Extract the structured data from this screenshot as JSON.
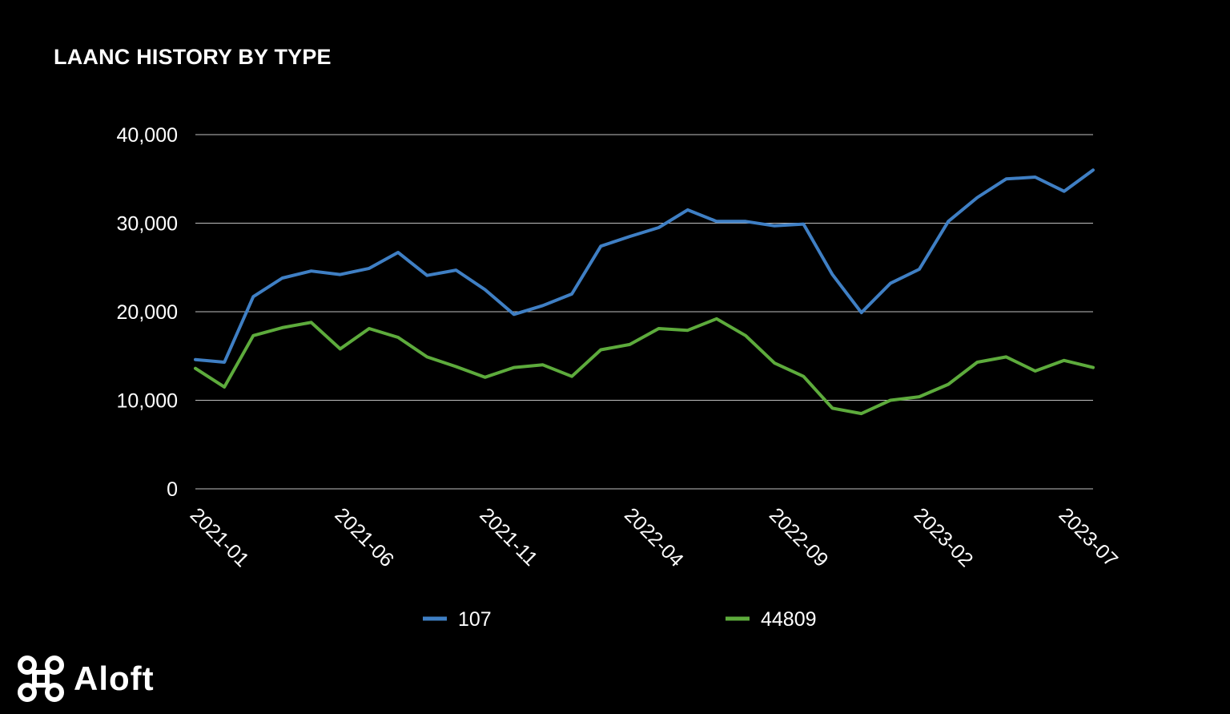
{
  "chart_data": {
    "type": "line",
    "title": "LAANC HISTORY BY TYPE",
    "ylim": [
      0,
      40000
    ],
    "yticks": [
      0,
      10000,
      20000,
      30000,
      40000
    ],
    "ytick_labels": [
      "0",
      "10,000",
      "20,000",
      "30,000",
      "40,000"
    ],
    "x": [
      "2021-01",
      "2021-02",
      "2021-03",
      "2021-04",
      "2021-05",
      "2021-06",
      "2021-07",
      "2021-08",
      "2021-09",
      "2021-10",
      "2021-11",
      "2021-12",
      "2022-01",
      "2022-02",
      "2022-03",
      "2022-04",
      "2022-05",
      "2022-06",
      "2022-07",
      "2022-08",
      "2022-09",
      "2022-10",
      "2022-11",
      "2022-12",
      "2023-01",
      "2023-02",
      "2023-03",
      "2023-04",
      "2023-05",
      "2023-06",
      "2023-07",
      "2023-08"
    ],
    "xtick_labels": [
      "2021-01",
      "2021-06",
      "2021-11",
      "2022-04",
      "2022-09",
      "2023-02",
      "2023-07"
    ],
    "grid": true,
    "legend_position": "bottom",
    "series": [
      {
        "name": "107",
        "color": "#3f7fc4",
        "values": [
          14600,
          14300,
          21700,
          23800,
          24600,
          24200,
          24900,
          26700,
          24100,
          24700,
          22500,
          19700,
          20700,
          22000,
          27400,
          28500,
          29500,
          31500,
          30200,
          30200,
          29700,
          29900,
          24200,
          19900,
          23200,
          24800,
          30200,
          32900,
          35000,
          35200,
          33600,
          36000
        ]
      },
      {
        "name": "44809",
        "color": "#5dab3c",
        "values": [
          13600,
          11500,
          17300,
          18200,
          18800,
          15800,
          18100,
          17100,
          14900,
          13800,
          12600,
          13700,
          14000,
          12700,
          15700,
          16300,
          18100,
          17900,
          19200,
          17300,
          14200,
          12700,
          9100,
          8500,
          10000,
          10400,
          11800,
          14300,
          14900,
          13300,
          14500,
          13700
        ]
      }
    ]
  },
  "brand": {
    "name": "Aloft",
    "logo_icon": "aloft-command-icon"
  }
}
